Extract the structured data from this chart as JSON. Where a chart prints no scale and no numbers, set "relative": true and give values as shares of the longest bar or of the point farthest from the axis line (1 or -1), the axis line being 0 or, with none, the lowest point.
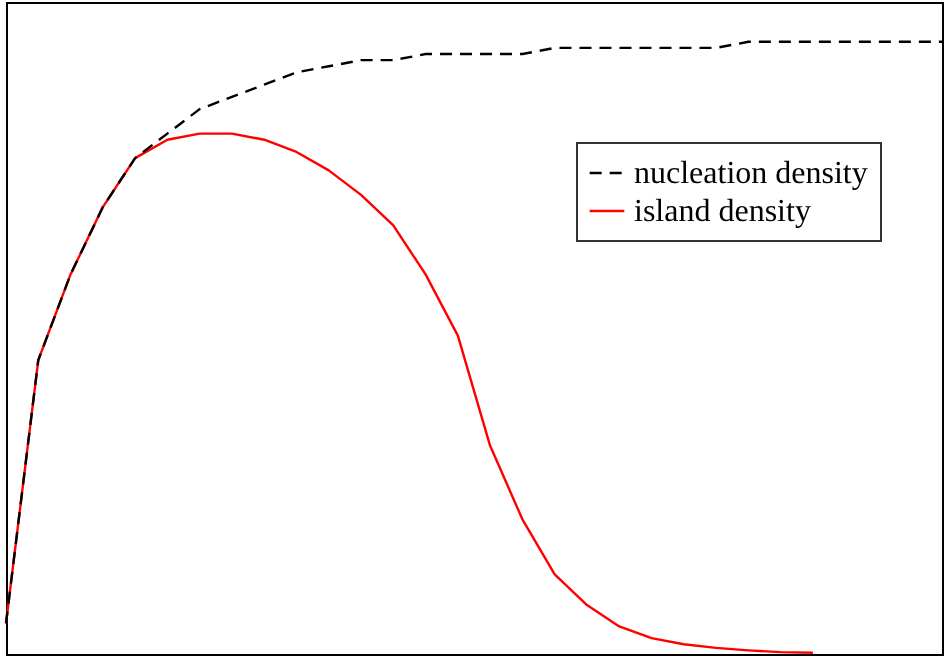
{
  "chart_data": {
    "type": "line",
    "relative": true,
    "legend": "top right",
    "categories": [
      null,
      null,
      null,
      null,
      null,
      null,
      null,
      null,
      null,
      null,
      null,
      null,
      null,
      null,
      null,
      null,
      null,
      null,
      null,
      null,
      null,
      null,
      null,
      null,
      null,
      null,
      null,
      null,
      null,
      null
    ],
    "series": [
      {
        "name": "nucleation density",
        "color": "#000000",
        "line_style": "dashed",
        "values": [
          0.05,
          0.48,
          0.62,
          0.73,
          0.81,
          0.85,
          0.89,
          0.91,
          0.93,
          0.95,
          0.96,
          0.97,
          0.97,
          0.98,
          0.98,
          0.98,
          0.98,
          0.99,
          0.99,
          0.99,
          0.99,
          0.99,
          0.99,
          1,
          1,
          1,
          1,
          1,
          1,
          1
        ]
      },
      {
        "name": "island density",
        "color": "#ff0000",
        "line_style": "solid",
        "values": [
          0.05,
          0.48,
          0.62,
          0.73,
          0.81,
          0.84,
          0.85,
          0.85,
          0.84,
          0.82,
          0.79,
          0.75,
          0.7,
          0.62,
          0.52,
          0.34,
          0.22,
          0.13,
          0.08,
          0.045,
          0.026,
          0.016,
          0.01,
          0.006,
          0.003,
          0.002,
          null,
          null,
          null,
          null
        ]
      }
    ]
  }
}
